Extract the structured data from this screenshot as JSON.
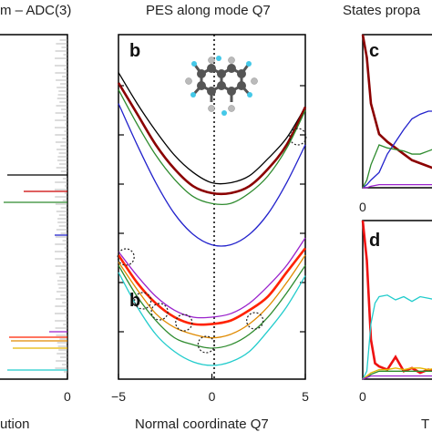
{
  "panels": {
    "left": {
      "title": "m – ADC(3)",
      "xlabel": "ution",
      "xtick": "0",
      "lines": [
        {
          "color": "#000000"
        },
        {
          "color": "#cc0000"
        },
        {
          "color": "#2e8b2e"
        },
        {
          "color": "#2222cc"
        },
        {
          "color": "#9a22cc"
        },
        {
          "color": "#ff2200"
        },
        {
          "color": "#e08a00"
        },
        {
          "color": "#e6b800"
        },
        {
          "color": "#22cccc"
        }
      ]
    },
    "b": {
      "label": "b",
      "title": "PES along mode Q7",
      "xlabel": "Normal coordinate Q7",
      "xticks": [
        "−5",
        "0",
        "5"
      ]
    },
    "c": {
      "label": "c",
      "title": "States propa",
      "xtick": "0"
    },
    "d": {
      "label": "d",
      "xlabel": "T"
    }
  },
  "chart_data": [
    {
      "type": "bar",
      "panel": "left",
      "title": "m – ADC(3)",
      "xlabel": "ution",
      "note_values": "horizontal spectral sticks; values are stick lengths toward 0 (arbitrary units)",
      "series": [
        {
          "color": "#000000",
          "value": 66
        },
        {
          "color": "#cc0000",
          "value": 48
        },
        {
          "color": "#2e8b2e",
          "value": 70
        },
        {
          "color": "#2222cc",
          "value": 14
        },
        {
          "color": "#9a22cc",
          "value": 20
        },
        {
          "color": "#ff2200",
          "value": 64
        },
        {
          "color": "#e08a00",
          "value": 62
        },
        {
          "color": "#e6b800",
          "value": 60
        },
        {
          "color": "#22cccc",
          "value": 66
        }
      ]
    },
    {
      "type": "line",
      "panel": "b",
      "title": "PES along mode Q7",
      "xlabel": "Normal coordinate Q7",
      "xlim": [
        -5,
        5
      ],
      "ylim": [
        0,
        1
      ],
      "x": [
        -5,
        -4,
        -3,
        -2,
        -1,
        0,
        1,
        2,
        3,
        4,
        5
      ],
      "series": [
        {
          "color": "#000000",
          "values": [
            0.89,
            0.8,
            0.72,
            0.65,
            0.6,
            0.57,
            0.57,
            0.59,
            0.64,
            0.7,
            0.79
          ]
        },
        {
          "color": "#8b0000",
          "values": [
            0.86,
            0.77,
            0.68,
            0.61,
            0.56,
            0.54,
            0.54,
            0.56,
            0.61,
            0.68,
            0.79
          ]
        },
        {
          "color": "#2e8b2e",
          "values": [
            0.84,
            0.74,
            0.65,
            0.58,
            0.53,
            0.51,
            0.51,
            0.54,
            0.59,
            0.67,
            0.78
          ]
        },
        {
          "color": "#2222cc",
          "values": [
            0.8,
            0.68,
            0.57,
            0.48,
            0.42,
            0.39,
            0.39,
            0.42,
            0.48,
            0.57,
            0.68
          ]
        },
        {
          "color": "#9a22cc",
          "values": [
            0.37,
            0.3,
            0.24,
            0.2,
            0.18,
            0.18,
            0.19,
            0.22,
            0.27,
            0.33,
            0.41
          ]
        },
        {
          "color": "#ff2200",
          "values": [
            0.36,
            0.28,
            0.22,
            0.18,
            0.16,
            0.16,
            0.17,
            0.2,
            0.24,
            0.31,
            0.38
          ]
        },
        {
          "color": "#e08a00",
          "values": [
            0.34,
            0.26,
            0.19,
            0.15,
            0.13,
            0.12,
            0.13,
            0.16,
            0.21,
            0.28,
            0.36
          ]
        },
        {
          "color": "#2e8b2e",
          "values": [
            0.33,
            0.24,
            0.17,
            0.12,
            0.1,
            0.09,
            0.1,
            0.13,
            0.18,
            0.25,
            0.33
          ]
        },
        {
          "color": "#22cccc",
          "values": [
            0.31,
            0.21,
            0.13,
            0.08,
            0.05,
            0.04,
            0.05,
            0.08,
            0.14,
            0.21,
            0.3
          ]
        }
      ],
      "crossings_x": [
        4.6,
        -4.6,
        -3.7,
        -2.8,
        -1.5,
        -0.3,
        2.3
      ]
    },
    {
      "type": "line",
      "panel": "c",
      "title": "States propa",
      "xlim": [
        0,
        1
      ],
      "ylim": [
        0,
        1
      ],
      "x": [
        0,
        0.05,
        0.1,
        0.2,
        0.3,
        0.4,
        0.5,
        0.6,
        0.7,
        0.8,
        0.9,
        1.0
      ],
      "series": [
        {
          "color": "#8b0000",
          "values": [
            1.0,
            0.85,
            0.55,
            0.35,
            0.3,
            0.26,
            0.22,
            0.18,
            0.16,
            0.14,
            0.12,
            0.12
          ]
        },
        {
          "color": "#2222cc",
          "values": [
            0.0,
            0.02,
            0.05,
            0.1,
            0.22,
            0.3,
            0.38,
            0.45,
            0.48,
            0.5,
            0.5,
            0.5
          ]
        },
        {
          "color": "#2e8b2e",
          "values": [
            0.0,
            0.05,
            0.15,
            0.28,
            0.26,
            0.25,
            0.24,
            0.22,
            0.22,
            0.24,
            0.26,
            0.27
          ]
        },
        {
          "color": "#9a22cc",
          "values": [
            0.0,
            0.0,
            0.01,
            0.02,
            0.02,
            0.02,
            0.02,
            0.02,
            0.02,
            0.02,
            0.02,
            0.02
          ]
        }
      ]
    },
    {
      "type": "line",
      "panel": "d",
      "xlabel": "T",
      "xlim": [
        0,
        1
      ],
      "ylim": [
        0,
        1
      ],
      "x": [
        0,
        0.05,
        0.1,
        0.15,
        0.2,
        0.3,
        0.4,
        0.5,
        0.6,
        0.7,
        0.8,
        0.9,
        1.0
      ],
      "series": [
        {
          "color": "#ee1111",
          "values": [
            1.0,
            0.75,
            0.25,
            0.1,
            0.08,
            0.06,
            0.14,
            0.05,
            0.07,
            0.04,
            0.06,
            0.05,
            0.04
          ]
        },
        {
          "color": "#22cccc",
          "values": [
            0.0,
            0.05,
            0.35,
            0.48,
            0.52,
            0.53,
            0.5,
            0.52,
            0.49,
            0.52,
            0.51,
            0.5,
            0.5
          ]
        },
        {
          "color": "#e6b800",
          "values": [
            0.0,
            0.02,
            0.04,
            0.05,
            0.06,
            0.06,
            0.07,
            0.06,
            0.07,
            0.07,
            0.06,
            0.07,
            0.07
          ]
        },
        {
          "color": "#2e8b2e",
          "values": [
            0.0,
            0.01,
            0.03,
            0.04,
            0.05,
            0.05,
            0.05,
            0.05,
            0.05,
            0.05,
            0.05,
            0.05,
            0.05
          ]
        },
        {
          "color": "#9a22cc",
          "values": [
            0.0,
            0.01,
            0.02,
            0.02,
            0.02,
            0.02,
            0.02,
            0.02,
            0.02,
            0.02,
            0.02,
            0.02,
            0.02
          ]
        }
      ]
    }
  ]
}
